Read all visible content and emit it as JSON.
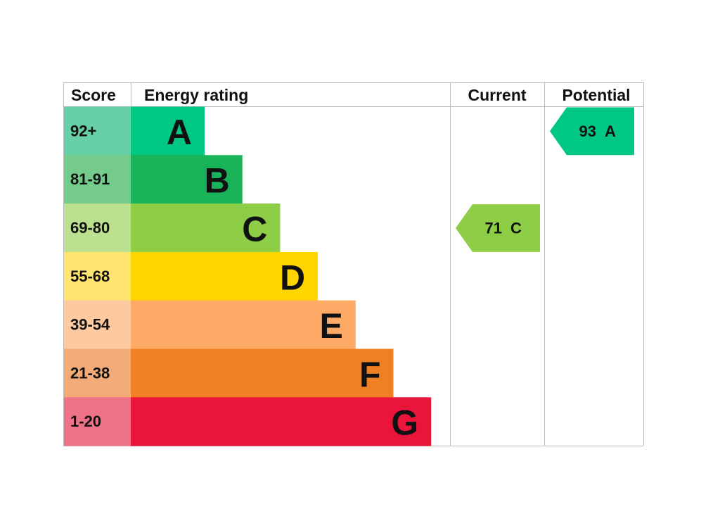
{
  "header": {
    "score": "Score",
    "rating": "Energy rating",
    "current": "Current",
    "potential": "Potential"
  },
  "bands": [
    {
      "score": "92+",
      "letter": "A",
      "color": "#00c781",
      "light": "#66cfa5"
    },
    {
      "score": "81-91",
      "letter": "B",
      "color": "#19b459",
      "light": "#75cb8b"
    },
    {
      "score": "69-80",
      "letter": "C",
      "color": "#8dce46",
      "light": "#bbe08f"
    },
    {
      "score": "55-68",
      "letter": "D",
      "color": "#ffd500",
      "light": "#ffe46f"
    },
    {
      "score": "39-54",
      "letter": "E",
      "color": "#fcaa65",
      "light": "#fcc9a0"
    },
    {
      "score": "21-38",
      "letter": "F",
      "color": "#ef8023",
      "light": "#f3ab77"
    },
    {
      "score": "1-20",
      "letter": "G",
      "color": "#e9153b",
      "light": "#ef7388"
    }
  ],
  "current": {
    "value": 71,
    "letter": "C"
  },
  "potential": {
    "value": 93,
    "letter": "A"
  }
}
